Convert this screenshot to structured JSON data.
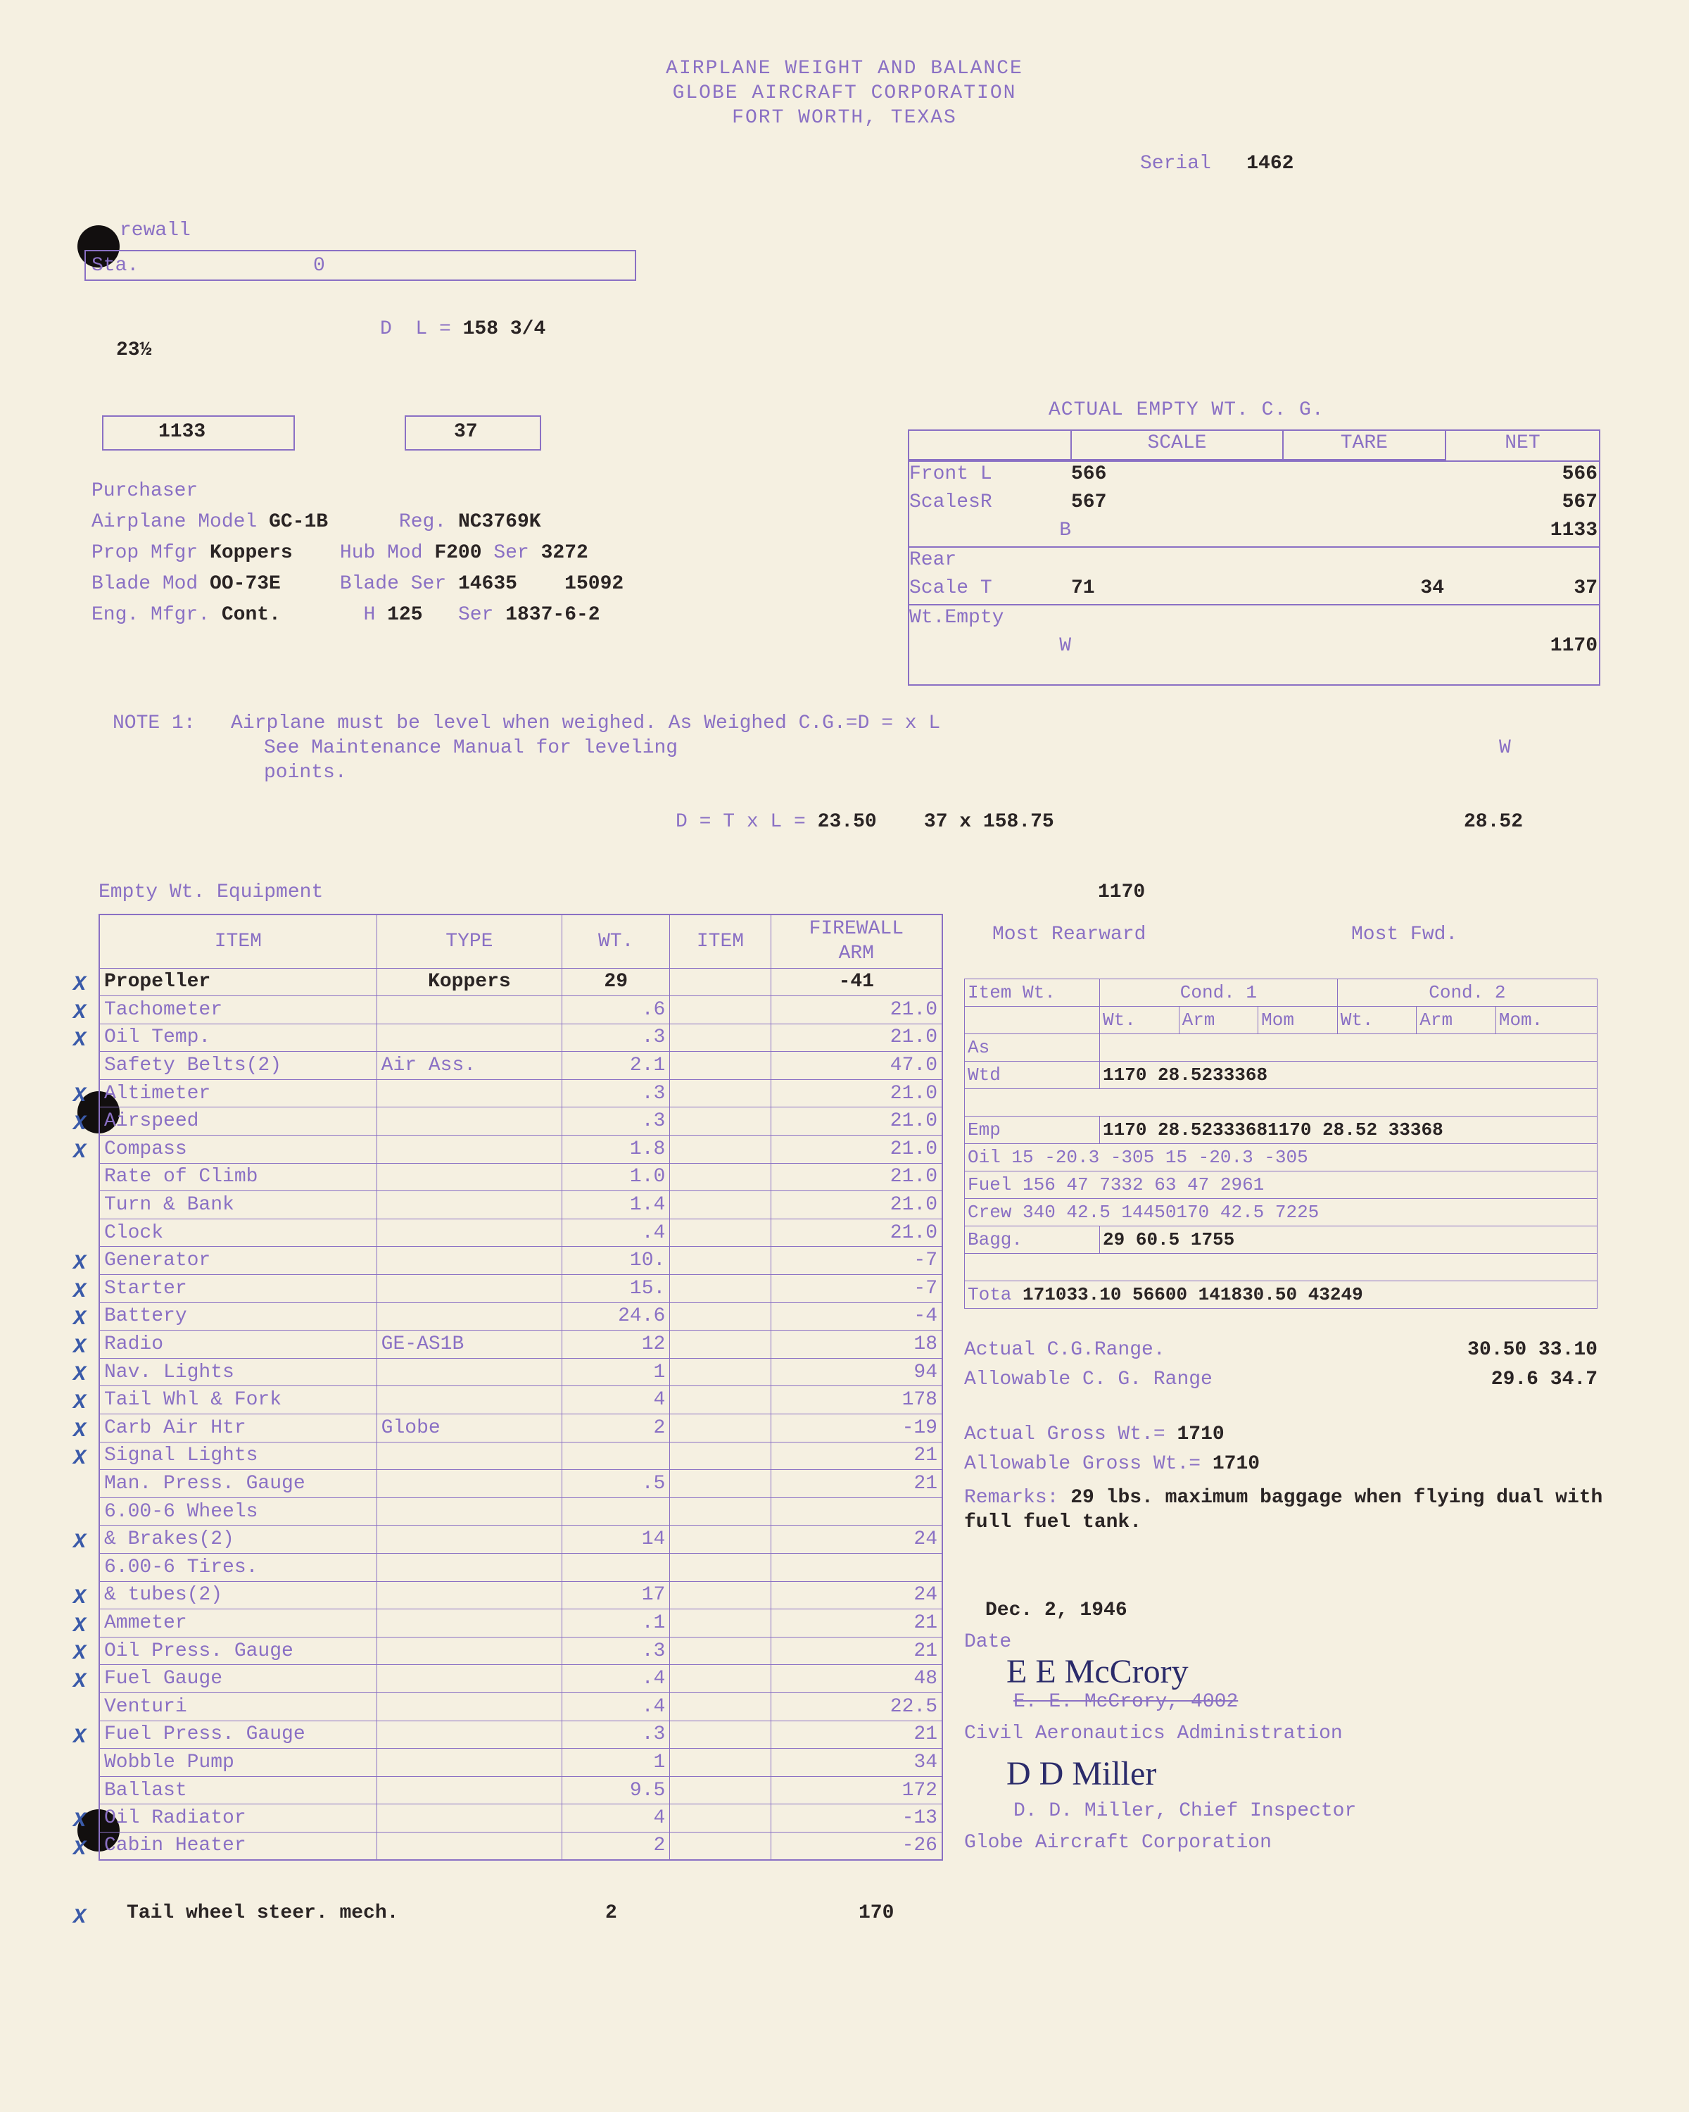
{
  "header": {
    "line1": "AIRPLANE WEIGHT AND BALANCE",
    "line2": "GLOBE AIRCRAFT CORPORATION",
    "line3": "FORT WORTH, TEXAS",
    "serial_label": "Serial",
    "serial": "1462"
  },
  "topdiag": {
    "firewall": "rewall",
    "sta": "Sta.",
    "zero": "0",
    "twothree": "23½",
    "dleq": "D  L = 158 3/4",
    "box1": "1133",
    "box2": "37"
  },
  "purchaser_label": "Purchaser",
  "aircraft": {
    "model_label": "Airplane Model",
    "model": "GC-1B",
    "reg_label": "Reg.",
    "reg": "NC3769K",
    "prop_mfgr_label": "Prop Mfgr",
    "prop_mfgr": "Koppers",
    "hub_label": "Hub Mod",
    "hub": "F200",
    "hub_ser_label": "Ser",
    "hub_ser": "3272",
    "blade_label": "Blade Mod",
    "blade": "OO-73E",
    "blade_ser_label": "Blade Ser",
    "blade_ser1": "14635",
    "blade_ser2": "15092",
    "eng_label": "Eng. Mfgr.",
    "eng": "Cont.",
    "hp_label": "H",
    "hp": "125",
    "eng_ser_label": "Ser",
    "eng_ser": "1837-6-2"
  },
  "actual_empty_label": "ACTUAL EMPTY WT. C. G.",
  "scales": {
    "col_scale": "SCALE",
    "col_tare": "TARE",
    "col_net": "NET",
    "frontL_label": "Front L",
    "frontL": "566",
    "frontL_net": "566",
    "scalesR_label": "ScalesR",
    "scalesR": "567",
    "scalesR_net": "567",
    "B_label": "B",
    "B_net": "1133",
    "rear_label": "Rear",
    "scaleT_label": "Scale T",
    "scaleT": "71",
    "scaleT_tare": "34",
    "scaleT_net": "37",
    "wtempty_label": "Wt.Empty",
    "W_label": "W",
    "W_net": "1170"
  },
  "note1": {
    "label": "NOTE 1:",
    "l1": "Airplane must be level when weighed.  As Weighed C.G.=D =  x L",
    "l2": "See Maintenance Manual for leveling",
    "l2b": "W",
    "l3": "points."
  },
  "dtl": {
    "formula": "D = T x L =",
    "v1": "23.50",
    "v2": "37 x 158.75",
    "v3": "28.52"
  },
  "empty_wt_label": "Empty Wt. Equipment",
  "empty_wt_val": "1170",
  "eq_headers": {
    "item": "ITEM",
    "type": "TYPE",
    "wt": "WT.",
    "itemcol": "ITEM",
    "arm": "FIREWALL\nARM"
  },
  "equipment": [
    {
      "x": true,
      "item": "Propeller",
      "type": "Koppers",
      "wt": "29",
      "arm": "-41"
    },
    {
      "x": true,
      "item": "Tachometer",
      "type": "",
      "wt": ".6",
      "arm": "21.0"
    },
    {
      "x": true,
      "item": "Oil Temp.",
      "type": "",
      "wt": ".3",
      "arm": "21.0"
    },
    {
      "x": false,
      "item": "Safety Belts(2)",
      "type": "Air Ass.",
      "wt": "2.1",
      "arm": "47.0"
    },
    {
      "x": true,
      "item": "Altimeter",
      "type": "",
      "wt": ".3",
      "arm": "21.0"
    },
    {
      "x": true,
      "item": "Airspeed",
      "type": "",
      "wt": ".3",
      "arm": "21.0"
    },
    {
      "x": true,
      "item": "Compass",
      "type": "",
      "wt": "1.8",
      "arm": "21.0"
    },
    {
      "x": false,
      "item": "Rate of Climb",
      "type": "",
      "wt": "1.0",
      "arm": "21.0"
    },
    {
      "x": false,
      "item": "Turn & Bank",
      "type": "",
      "wt": "1.4",
      "arm": "21.0"
    },
    {
      "x": false,
      "item": "Clock",
      "type": "",
      "wt": ".4",
      "arm": "21.0"
    },
    {
      "x": true,
      "item": "Generator",
      "type": "",
      "wt": "10.",
      "arm": "-7"
    },
    {
      "x": true,
      "item": "Starter",
      "type": "",
      "wt": "15.",
      "arm": "-7"
    },
    {
      "x": true,
      "item": "Battery",
      "type": "",
      "wt": "24.6",
      "arm": "-4"
    },
    {
      "x": true,
      "item": "Radio",
      "type": "GE-AS1B",
      "wt": "12",
      "arm": "18"
    },
    {
      "x": true,
      "item": "Nav. Lights",
      "type": "",
      "wt": "1",
      "arm": "94"
    },
    {
      "x": true,
      "item": "Tail Whl & Fork",
      "type": "",
      "wt": "4",
      "arm": "178"
    },
    {
      "x": true,
      "item": "Carb Air Htr",
      "type": "Globe",
      "wt": "2",
      "arm": "-19"
    },
    {
      "x": true,
      "item": "Signal Lights",
      "type": "",
      "wt": "",
      "arm": "21"
    },
    {
      "x": false,
      "item": "Man. Press. Gauge",
      "type": "",
      "wt": ".5",
      "arm": "21"
    },
    {
      "x": false,
      "item": "6.00-6 Wheels",
      "type": "",
      "wt": "",
      "arm": ""
    },
    {
      "x": true,
      "item": "& Brakes(2)",
      "type": "",
      "wt": "14",
      "arm": "24"
    },
    {
      "x": false,
      "item": "6.00-6 Tires.",
      "type": "",
      "wt": "",
      "arm": ""
    },
    {
      "x": true,
      "item": "& tubes(2)",
      "type": "",
      "wt": "17",
      "arm": "24"
    },
    {
      "x": true,
      "item": "Ammeter",
      "type": "",
      "wt": ".1",
      "arm": "21"
    },
    {
      "x": true,
      "item": "Oil Press. Gauge",
      "type": "",
      "wt": ".3",
      "arm": "21"
    },
    {
      "x": true,
      "item": "Fuel Gauge",
      "type": "",
      "wt": ".4",
      "arm": "48"
    },
    {
      "x": false,
      "item": "Venturi",
      "type": "",
      "wt": ".4",
      "arm": "22.5"
    },
    {
      "x": true,
      "item": "Fuel Press. Gauge",
      "type": "",
      "wt": ".3",
      "arm": "21"
    },
    {
      "x": false,
      "item": "Wobble Pump",
      "type": "",
      "wt": "1",
      "arm": "34"
    },
    {
      "x": false,
      "item": "Ballast",
      "type": "",
      "wt": "9.5",
      "arm": "172"
    },
    {
      "x": true,
      "item": "Oil Radiator",
      "type": "",
      "wt": "4",
      "arm": "-13"
    },
    {
      "x": true,
      "item": "Cabin Heater",
      "type": "",
      "wt": "2",
      "arm": "-26"
    }
  ],
  "equipment_extra": {
    "item": "Tail wheel steer. mech.",
    "wt": "2",
    "arm": "170",
    "x": true
  },
  "cg_headers": {
    "rear": "Most Rearward",
    "fwd": "Most Fwd."
  },
  "cg_sub": {
    "itemwt": "Item Wt.",
    "c1": "Cond. 1",
    "c2": "Cond. 2",
    "wt": "Wt.",
    "arm": "Arm",
    "mom": "Mom",
    "wt2": "Wt.",
    "arm2": "Arm",
    "mom2": "Mom."
  },
  "cg_rows": {
    "as": "As",
    "wtd": "Wtd",
    "wtd_v": "1170 28.5233368",
    "emp": "Emp",
    "emp_v1": "1170 28.52333681170 28.52 33368",
    "oil": "Oil  15  -20.3 -305 15  -20.3  -305",
    "fuel": "Fuel 156   47  7332 63   47  2961",
    "crew": "Crew 340  42.5 14450170  42.5 7225",
    "bagg": "Bagg.",
    "bagg_v": "29  60.5 1755",
    "tota": "Tota 171033.10 56600 141830.50 43249"
  },
  "cgrange": {
    "actual_label": "Actual C.G.Range.",
    "actual_v": "30.50  33.10",
    "allow_label": "Allowable C. G. Range",
    "allow_v": "29.6 34.7"
  },
  "gross": {
    "actual_label": "Actual Gross Wt.=",
    "actual_v": "1710",
    "allow_label": "Allowable Gross Wt.=",
    "allow_v": "1710"
  },
  "remarks": {
    "label": "Remarks:",
    "text": "29 lbs. maximum baggage when flying dual with full fuel tank."
  },
  "date_val": "Dec. 2, 1946",
  "date_label": "Date",
  "sig1_name": "E. E. McCrory, 4002",
  "sig1_org": "Civil Aeronautics Administration",
  "sig2_name": "D. D. Miller, Chief Inspector",
  "sig2_org": "Globe Aircraft Corporation",
  "sig1_script": "E E McCrory",
  "sig2_script": "D D Miller"
}
